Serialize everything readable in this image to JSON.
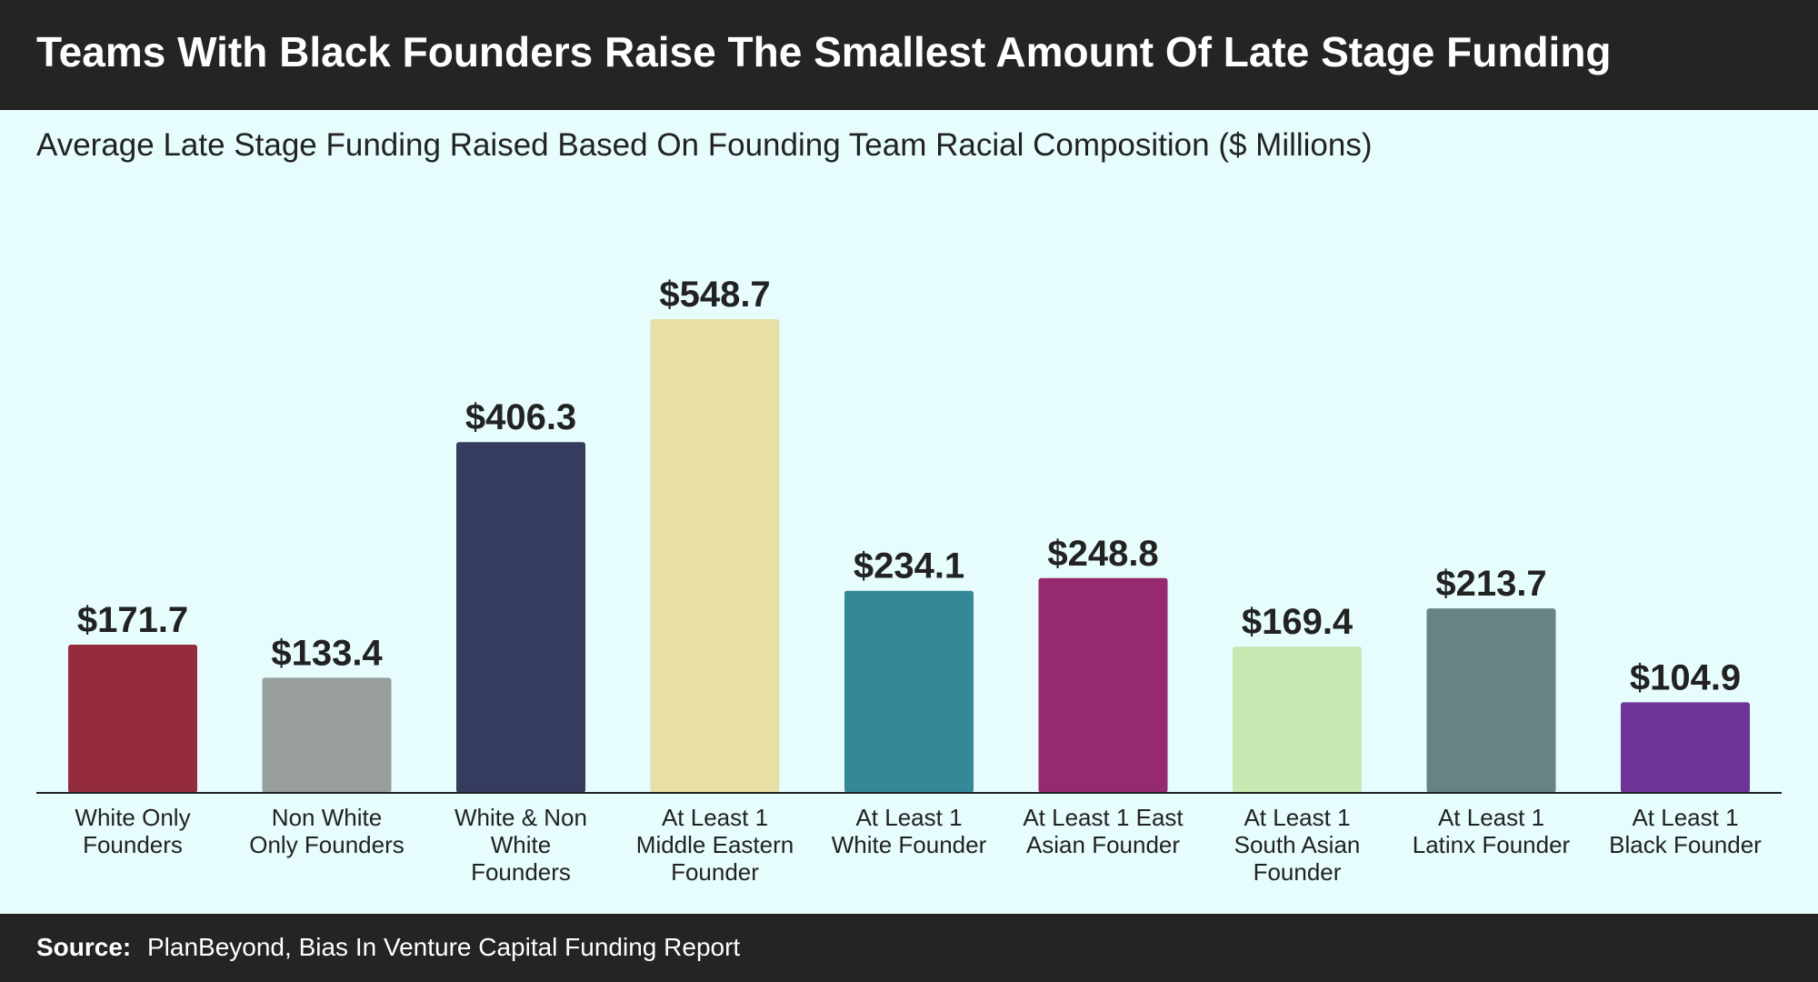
{
  "header": {
    "title": "Teams With Black Founders Raise The Smallest Amount Of Late Stage Funding"
  },
  "chart_data": {
    "type": "bar",
    "title": "Teams With Black Founders Raise The Smallest Amount Of Late Stage Funding",
    "subtitle": "Average Late Stage Funding Raised Based On Founding Team Racial Composition ($ Millions)",
    "xlabel": "",
    "ylabel": "",
    "grid": false,
    "categories": [
      [
        "White Only",
        "Founders"
      ],
      [
        "Non White",
        "Only Founders"
      ],
      [
        "White & Non",
        "White",
        "Founders"
      ],
      [
        "At Least 1",
        "Middle Eastern",
        "Founder"
      ],
      [
        "At Least 1",
        "White Founder"
      ],
      [
        "At Least 1 East",
        "Asian Founder"
      ],
      [
        "At Least 1",
        "South Asian",
        "Founder"
      ],
      [
        "At Least 1",
        "Latinx Founder"
      ],
      [
        "At Least 1",
        "Black Founder"
      ]
    ],
    "values": [
      171.7,
      133.4,
      406.3,
      548.7,
      234.1,
      248.8,
      169.4,
      213.7,
      104.9
    ],
    "value_labels": [
      "$171.7",
      "$133.4",
      "$406.3",
      "$548.7",
      "$234.1",
      "$248.8",
      "$169.4",
      "$213.7",
      "$104.9"
    ],
    "colors": [
      "#952c3d",
      "#999e9f",
      "#363c5e",
      "#e7dfa6",
      "#368899",
      "#962a6f",
      "#c8e8b1",
      "#678483",
      "#6e3499"
    ],
    "ylim": [
      0,
      548.7
    ]
  },
  "footer": {
    "source_label": "Source:",
    "source_text": "PlanBeyond, Bias In Venture Capital Funding Report"
  }
}
